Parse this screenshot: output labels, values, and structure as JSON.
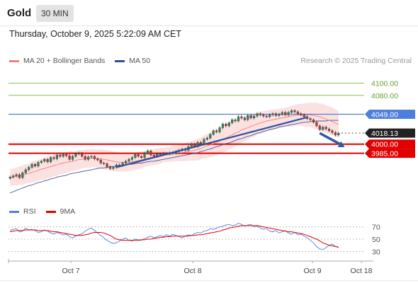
{
  "header": {
    "instrument": "Gold",
    "timeframe": "30 MIN"
  },
  "timestamp": "Thursday, October 9, 2025 5:22:09 AM CET",
  "legend_top": [
    {
      "label": "MA 20 + Bollinger Bands",
      "color": "#f08080"
    },
    {
      "label": "MA 50",
      "color": "#2f4f8f"
    }
  ],
  "credit": "Research © 2025 Trading Central",
  "legend_bottom": [
    {
      "label": "RSI",
      "color": "#4f7fd9"
    },
    {
      "label": "9MA",
      "color": "#e00000"
    }
  ],
  "colors": {
    "up": "#2e8b57",
    "down": "#c0392b",
    "resistance": "#8bc34a",
    "pivot_line": "#4f7fd9",
    "support": "#e00000",
    "trend": "#2f4f9f",
    "current": "#222222",
    "bollinger": "#fbd7d7"
  },
  "chart_data": {
    "type": "candlestick",
    "x_ticks": [
      "Oct 7",
      "Oct 8",
      "Oct 9",
      "Oct 18"
    ],
    "price_levels": [
      {
        "label": "4100.00",
        "value": 4100,
        "kind": "resistance"
      },
      {
        "label": "4080.00",
        "value": 4080,
        "kind": "resistance"
      },
      {
        "label": "4049.00",
        "value": 4049,
        "kind": "pivot"
      },
      {
        "label": "4018.13",
        "value": 4018.13,
        "kind": "current"
      },
      {
        "label": "4000.00",
        "value": 4000,
        "kind": "support"
      },
      {
        "label": "3985.00",
        "value": 3985,
        "kind": "support"
      }
    ],
    "price_range": [
      3915,
      4125
    ],
    "close": [
      3946,
      3948,
      3950,
      3945,
      3953,
      3958,
      3962,
      3967,
      3964,
      3970,
      3972,
      3975,
      3971,
      3978,
      3976,
      3982,
      3980,
      3983,
      3981,
      3975,
      3980,
      3984,
      3985,
      3980,
      3975,
      3979,
      3980,
      3976,
      3974,
      3969,
      3968,
      3963,
      3960,
      3962,
      3966,
      3965,
      3969,
      3972,
      3975,
      3978,
      3983,
      3980,
      3978,
      3985,
      3989,
      3982,
      3980,
      3984,
      3983,
      3985,
      3984,
      3986,
      3985,
      3988,
      3990,
      3992,
      3990,
      3996,
      4000,
      3996,
      4003,
      4000,
      4008,
      4010,
      4016,
      4022,
      4020,
      4027,
      4033,
      4030,
      4035,
      4040,
      4038,
      4045,
      4043,
      4040,
      4047,
      4043,
      4046,
      4050,
      4048,
      4046,
      4045,
      4048,
      4050,
      4047,
      4049,
      4052,
      4048,
      4052,
      4055,
      4053,
      4050,
      4048,
      4045,
      4042,
      4040,
      4036,
      4030,
      4024,
      4028,
      4025,
      4022,
      4019,
      4015,
      4018
    ],
    "ma20": [
      3945,
      3946,
      3947,
      3948,
      3949,
      3951,
      3952,
      3954,
      3955,
      3957,
      3959,
      3960,
      3962,
      3963,
      3965,
      3966,
      3968,
      3969,
      3970,
      3971,
      3972,
      3973,
      3975,
      3975,
      3976,
      3976,
      3977,
      3977,
      3976,
      3976,
      3975,
      3974,
      3973,
      3972,
      3971,
      3970,
      3970,
      3970,
      3970,
      3971,
      3972,
      3973,
      3974,
      3976,
      3977,
      3978,
      3979,
      3980,
      3981,
      3982,
      3983,
      3983,
      3984,
      3985,
      3986,
      3986,
      3987,
      3988,
      3989,
      3990,
      3991,
      3993,
      3995,
      3997,
      3999,
      4001,
      4003,
      4005,
      4008,
      4010,
      4013,
      4015,
      4018,
      4020,
      4023,
      4025,
      4027,
      4029,
      4031,
      4033,
      4035,
      4036,
      4038,
      4039,
      4040,
      4041,
      4042,
      4043,
      4044,
      4045,
      4046,
      4047,
      4048,
      4048,
      4048,
      4048,
      4048,
      4047,
      4046,
      4045,
      4043,
      4041,
      4039,
      4037,
      4035,
      4032
    ],
    "ma50": [
      3920,
      3922,
      3924,
      3926,
      3928,
      3930,
      3932,
      3933,
      3935,
      3937,
      3938,
      3940,
      3941,
      3943,
      3944,
      3946,
      3947,
      3948,
      3949,
      3951,
      3952,
      3953,
      3954,
      3955,
      3956,
      3957,
      3958,
      3959,
      3960,
      3961,
      3961,
      3962,
      3963,
      3963,
      3964,
      3965,
      3965,
      3966,
      3967,
      3967,
      3968,
      3969,
      3969,
      3970,
      3971,
      3972,
      3972,
      3973,
      3974,
      3975,
      3976,
      3977,
      3978,
      3979,
      3980,
      3981,
      3982,
      3983,
      3984,
      3985,
      3986,
      3988,
      3989,
      3991,
      3992,
      3994,
      3996,
      3997,
      3999,
      4001,
      4002,
      4004,
      4006,
      4008,
      4009,
      4011,
      4013,
      4014,
      4016,
      4018,
      4019,
      4021,
      4022,
      4024,
      4025,
      4026,
      4028,
      4029,
      4030,
      4031,
      4032,
      4033,
      4034,
      4035,
      4036,
      4036,
      4037,
      4037,
      4038,
      4038,
      4038,
      4038,
      4039,
      4039,
      4039,
      4039
    ],
    "bb_width": [
      14,
      14,
      15,
      15,
      16,
      16,
      16,
      17,
      17,
      17,
      17,
      18,
      18,
      18,
      18,
      18,
      18,
      17,
      17,
      17,
      16,
      16,
      16,
      15,
      15,
      15,
      15,
      15,
      15,
      16,
      16,
      16,
      16,
      16,
      16,
      15,
      15,
      15,
      14,
      14,
      14,
      14,
      14,
      13,
      13,
      13,
      13,
      13,
      13,
      12,
      12,
      12,
      13,
      13,
      14,
      14,
      15,
      15,
      16,
      17,
      18,
      18,
      19,
      20,
      20,
      21,
      21,
      21,
      22,
      22,
      22,
      22,
      21,
      21,
      21,
      20,
      20,
      19,
      19,
      18,
      18,
      18,
      17,
      17,
      17,
      16,
      16,
      16,
      16,
      16,
      17,
      17,
      18,
      18,
      19,
      20,
      20,
      21,
      22,
      22,
      23,
      23,
      23,
      23,
      22,
      22
    ],
    "trend_line": {
      "from": {
        "index": 34,
        "value": 3962
      },
      "to": {
        "index": 95,
        "value": 4044
      }
    },
    "projection_arrow": {
      "from": {
        "index": 99,
        "value": 4018
      },
      "to": {
        "index": 107,
        "value": 3995
      }
    },
    "rsi_levels": [
      70,
      50,
      30
    ],
    "rsi_range": [
      20,
      80
    ],
    "rsi": [
      64,
      66,
      67,
      62,
      63,
      68,
      65,
      66,
      64,
      61,
      62,
      65,
      63,
      60,
      58,
      61,
      59,
      57,
      58,
      54,
      52,
      55,
      57,
      59,
      63,
      66,
      68,
      64,
      60,
      56,
      52,
      48,
      45,
      43,
      44,
      47,
      50,
      52,
      48,
      47,
      50,
      49,
      48,
      51,
      53,
      55,
      52,
      54,
      56,
      54,
      57,
      55,
      58,
      56,
      54,
      52,
      55,
      57,
      56,
      59,
      61,
      60,
      63,
      64,
      67,
      66,
      68,
      70,
      71,
      73,
      74,
      72,
      73,
      76,
      74,
      71,
      73,
      74,
      70,
      71,
      68,
      66,
      67,
      63,
      62,
      64,
      60,
      62,
      64,
      60,
      58,
      61,
      57,
      58,
      55,
      52,
      48,
      44,
      38,
      34,
      33,
      36,
      40,
      42,
      38,
      36
    ],
    "rsi_ma": [
      62,
      63,
      64,
      64,
      64,
      65,
      65,
      65,
      65,
      64,
      64,
      64,
      64,
      63,
      62,
      62,
      61,
      60,
      59,
      58,
      57,
      56,
      56,
      56,
      57,
      58,
      60,
      61,
      61,
      61,
      60,
      58,
      56,
      53,
      50,
      49,
      48,
      48,
      48,
      48,
      48,
      48,
      49,
      49,
      50,
      50,
      51,
      52,
      53,
      53,
      54,
      54,
      55,
      55,
      55,
      55,
      55,
      55,
      56,
      56,
      57,
      57,
      58,
      59,
      60,
      61,
      62,
      63,
      65,
      66,
      68,
      69,
      70,
      71,
      72,
      72,
      72,
      72,
      72,
      72,
      71,
      70,
      69,
      68,
      67,
      66,
      65,
      64,
      63,
      62,
      62,
      61,
      60,
      59,
      58,
      56,
      54,
      52,
      50,
      47,
      44,
      42,
      40,
      39,
      38,
      37
    ]
  }
}
